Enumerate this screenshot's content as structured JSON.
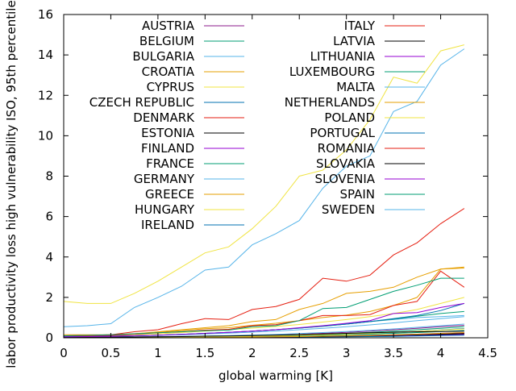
{
  "chart_data": {
    "type": "line",
    "title": "",
    "xlabel": "global warming [K]",
    "ylabel": "labor productivity loss high vulnerability ISO, 95th percentile",
    "xlim": [
      0,
      4.5
    ],
    "ylim": [
      0,
      16
    ],
    "xticks": [
      0,
      0.5,
      1,
      1.5,
      2,
      2.5,
      3,
      3.5,
      4,
      4.5
    ],
    "xtick_labels": [
      "0",
      "0.5",
      "1",
      "1.5",
      "2",
      "2.5",
      "3",
      "3.5",
      "4",
      "4.5"
    ],
    "yticks": [
      0,
      2,
      4,
      6,
      8,
      10,
      12,
      14,
      16
    ],
    "ytick_labels": [
      "0",
      "2",
      "4",
      "6",
      "8",
      "10",
      "12",
      "14",
      "16"
    ],
    "grid": false,
    "legend_position": "top, two columns",
    "x": [
      0,
      0.25,
      0.5,
      0.75,
      1,
      1.25,
      1.5,
      1.75,
      2,
      2.25,
      2.5,
      2.75,
      3,
      3.25,
      3.5,
      3.75,
      4,
      4.25
    ],
    "series": [
      {
        "name": "AUSTRIA",
        "color": "#8b1a8b",
        "values": [
          0.02,
          0.02,
          0.03,
          0.04,
          0.05,
          0.06,
          0.08,
          0.09,
          0.12,
          0.14,
          0.17,
          0.22,
          0.27,
          0.33,
          0.4,
          0.47,
          0.55,
          0.62
        ]
      },
      {
        "name": "BELGIUM",
        "color": "#009e73",
        "values": [
          0.01,
          0.01,
          0.02,
          0.03,
          0.04,
          0.05,
          0.06,
          0.07,
          0.09,
          0.11,
          0.14,
          0.18,
          0.22,
          0.27,
          0.33,
          0.4,
          0.47,
          0.55
        ]
      },
      {
        "name": "BULGARIA",
        "color": "#56b4e9",
        "values": [
          0.05,
          0.06,
          0.07,
          0.1,
          0.13,
          0.17,
          0.22,
          0.27,
          0.33,
          0.4,
          0.48,
          0.58,
          0.68,
          0.8,
          0.9,
          1.0,
          1.05,
          1.1
        ]
      },
      {
        "name": "CROATIA",
        "color": "#e69f00",
        "values": [
          0.1,
          0.12,
          0.15,
          0.2,
          0.27,
          0.35,
          0.45,
          0.5,
          0.62,
          0.72,
          0.85,
          1.0,
          1.12,
          1.3,
          1.6,
          2.0,
          3.4,
          3.45
        ]
      },
      {
        "name": "CYPRUS",
        "color": "#f0e442",
        "values": [
          0.08,
          0.1,
          0.12,
          0.16,
          0.2,
          0.26,
          0.33,
          0.4,
          0.48,
          0.56,
          0.66,
          0.78,
          0.9,
          1.05,
          1.2,
          1.4,
          1.7,
          2.0
        ]
      },
      {
        "name": "CZECH REPUBLIC",
        "color": "#0072b2",
        "values": [
          0.01,
          0.01,
          0.02,
          0.02,
          0.03,
          0.04,
          0.05,
          0.06,
          0.07,
          0.09,
          0.11,
          0.14,
          0.17,
          0.21,
          0.26,
          0.32,
          0.39,
          0.46
        ]
      },
      {
        "name": "DENMARK",
        "color": "#e51e10",
        "values": [
          0.0,
          0.0,
          0.0,
          0.01,
          0.01,
          0.01,
          0.02,
          0.02,
          0.03,
          0.04,
          0.05,
          0.06,
          0.08,
          0.1,
          0.12,
          0.15,
          0.18,
          0.22
        ]
      },
      {
        "name": "ESTONIA",
        "color": "#000000",
        "values": [
          0.0,
          0.0,
          0.0,
          0.01,
          0.01,
          0.01,
          0.02,
          0.02,
          0.03,
          0.04,
          0.05,
          0.06,
          0.08,
          0.1,
          0.12,
          0.14,
          0.16,
          0.19
        ]
      },
      {
        "name": "FINLAND",
        "color": "#9400d3",
        "values": [
          0.0,
          0.0,
          0.0,
          0.0,
          0.01,
          0.01,
          0.01,
          0.02,
          0.02,
          0.03,
          0.04,
          0.05,
          0.06,
          0.07,
          0.09,
          0.11,
          0.13,
          0.16
        ]
      },
      {
        "name": "FRANCE",
        "color": "#009e73",
        "values": [
          0.05,
          0.06,
          0.08,
          0.1,
          0.13,
          0.17,
          0.22,
          0.27,
          0.33,
          0.4,
          0.48,
          0.57,
          0.68,
          0.8,
          0.93,
          1.07,
          1.2,
          1.3
        ]
      },
      {
        "name": "GERMANY",
        "color": "#56b4e9",
        "values": [
          0.02,
          0.02,
          0.03,
          0.04,
          0.05,
          0.07,
          0.09,
          0.11,
          0.14,
          0.17,
          0.21,
          0.26,
          0.31,
          0.37,
          0.44,
          0.52,
          0.6,
          0.68
        ]
      },
      {
        "name": "GREECE",
        "color": "#e69f00",
        "values": [
          0.15,
          0.15,
          0.15,
          0.2,
          0.3,
          0.4,
          0.5,
          0.6,
          0.8,
          0.9,
          1.4,
          1.7,
          2.2,
          2.3,
          2.5,
          3.0,
          3.4,
          3.5
        ]
      },
      {
        "name": "HUNGARY",
        "color": "#f0e442",
        "values": [
          1.8,
          1.7,
          1.7,
          2.2,
          2.8,
          3.5,
          4.2,
          4.5,
          5.4,
          6.5,
          8.0,
          8.3,
          9.3,
          10.8,
          12.9,
          12.6,
          14.2,
          14.5
        ]
      },
      {
        "name": "IRELAND",
        "color": "#0072b2",
        "values": [
          0.0,
          0.0,
          0.0,
          0.0,
          0.0,
          0.01,
          0.01,
          0.01,
          0.02,
          0.02,
          0.03,
          0.04,
          0.05,
          0.06,
          0.07,
          0.09,
          0.11,
          0.13
        ]
      },
      {
        "name": "ITALY",
        "color": "#e51e10",
        "values": [
          0.1,
          0.12,
          0.15,
          0.3,
          0.4,
          0.7,
          0.95,
          0.9,
          1.4,
          1.55,
          1.9,
          2.95,
          2.8,
          3.1,
          4.1,
          4.7,
          5.65,
          6.4
        ]
      },
      {
        "name": "LATVIA",
        "color": "#000000",
        "values": [
          0.0,
          0.0,
          0.0,
          0.01,
          0.01,
          0.01,
          0.02,
          0.02,
          0.03,
          0.04,
          0.05,
          0.06,
          0.08,
          0.1,
          0.12,
          0.15,
          0.18,
          0.21
        ]
      },
      {
        "name": "LITHUANIA",
        "color": "#9400d3",
        "values": [
          0.0,
          0.0,
          0.01,
          0.01,
          0.01,
          0.02,
          0.02,
          0.03,
          0.04,
          0.05,
          0.06,
          0.08,
          0.1,
          0.12,
          0.15,
          0.18,
          0.22,
          0.26
        ]
      },
      {
        "name": "LUXEMBOURG",
        "color": "#009e73",
        "values": [
          0.01,
          0.01,
          0.01,
          0.02,
          0.02,
          0.03,
          0.04,
          0.05,
          0.06,
          0.08,
          0.1,
          0.12,
          0.15,
          0.18,
          0.22,
          0.26,
          0.31,
          0.36
        ]
      },
      {
        "name": "MALTA",
        "color": "#56b4e9",
        "values": [
          0.05,
          0.06,
          0.07,
          0.09,
          0.12,
          0.15,
          0.19,
          0.23,
          0.28,
          0.33,
          0.4,
          0.47,
          0.55,
          0.64,
          0.74,
          0.85,
          0.95,
          1.05
        ]
      },
      {
        "name": "NETHERLANDS",
        "color": "#e69f00",
        "values": [
          0.0,
          0.0,
          0.01,
          0.01,
          0.01,
          0.02,
          0.02,
          0.03,
          0.04,
          0.05,
          0.06,
          0.08,
          0.1,
          0.12,
          0.15,
          0.18,
          0.22,
          0.26
        ]
      },
      {
        "name": "POLAND",
        "color": "#f0e442",
        "values": [
          0.01,
          0.01,
          0.02,
          0.02,
          0.03,
          0.04,
          0.05,
          0.06,
          0.08,
          0.1,
          0.12,
          0.15,
          0.18,
          0.22,
          0.27,
          0.32,
          0.38,
          0.44
        ]
      },
      {
        "name": "PORTUGAL",
        "color": "#0072b2",
        "values": [
          0.05,
          0.06,
          0.08,
          0.1,
          0.13,
          0.17,
          0.22,
          0.27,
          0.33,
          0.4,
          0.48,
          0.58,
          0.68,
          0.8,
          0.95,
          1.1,
          1.35,
          1.7
        ]
      },
      {
        "name": "ROMANIA",
        "color": "#e51e10",
        "values": [
          0.1,
          0.1,
          0.12,
          0.18,
          0.25,
          0.3,
          0.38,
          0.42,
          0.6,
          0.65,
          0.85,
          1.1,
          1.1,
          1.15,
          1.6,
          1.8,
          3.3,
          2.5
        ]
      },
      {
        "name": "SLOVAKIA",
        "color": "#000000",
        "values": [
          0.02,
          0.02,
          0.03,
          0.04,
          0.05,
          0.06,
          0.08,
          0.09,
          0.11,
          0.13,
          0.16,
          0.19,
          0.22,
          0.25,
          0.28,
          0.3,
          0.31,
          0.33
        ]
      },
      {
        "name": "SLOVENIA",
        "color": "#9400d3",
        "values": [
          0.05,
          0.06,
          0.07,
          0.1,
          0.13,
          0.17,
          0.22,
          0.27,
          0.33,
          0.4,
          0.5,
          0.6,
          0.72,
          0.85,
          1.2,
          1.25,
          1.5,
          1.7
        ]
      },
      {
        "name": "SPAIN",
        "color": "#009e73",
        "values": [
          0.1,
          0.12,
          0.15,
          0.2,
          0.25,
          0.3,
          0.35,
          0.38,
          0.55,
          0.6,
          0.85,
          1.45,
          1.5,
          1.9,
          2.3,
          2.6,
          2.95,
          2.95
        ]
      },
      {
        "name": "SWEDEN",
        "color": "#56b4e9",
        "values": [
          0.55,
          0.6,
          0.7,
          1.5,
          2.0,
          2.55,
          3.35,
          3.5,
          4.6,
          5.15,
          5.8,
          7.4,
          8.5,
          9.0,
          11.2,
          11.7,
          13.5,
          14.3
        ]
      }
    ]
  }
}
